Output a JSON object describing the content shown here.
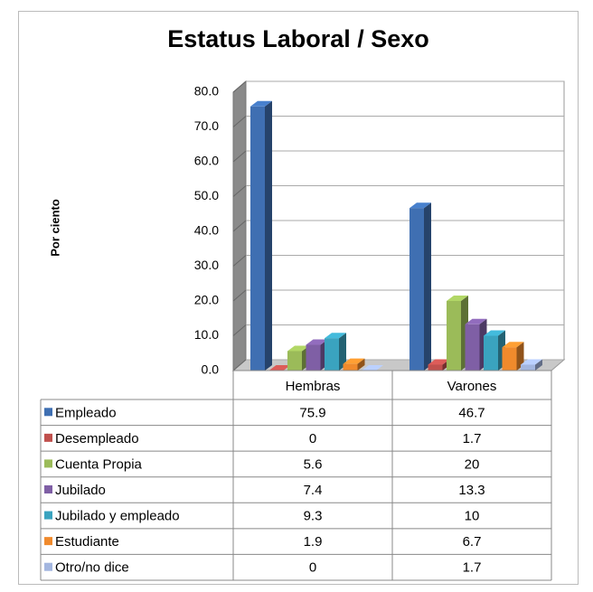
{
  "chart_data": {
    "type": "bar3d",
    "title": "Estatus Laboral / Sexo",
    "y_label": "Por ciento",
    "categories": [
      "Hembras",
      "Varones"
    ],
    "series": [
      {
        "name": "Empleado",
        "color": "#3f6fb2",
        "values": [
          75.9,
          46.7
        ]
      },
      {
        "name": "Desempleado",
        "color": "#c0504d",
        "values": [
          0,
          1.7
        ]
      },
      {
        "name": "Cuenta Propia",
        "color": "#9bbb59",
        "values": [
          5.6,
          20
        ]
      },
      {
        "name": "Jubilado",
        "color": "#7f5fa5",
        "values": [
          7.4,
          13.3
        ]
      },
      {
        "name": "Jubilado y empleado",
        "color": "#3aa3bf",
        "values": [
          9.3,
          10
        ]
      },
      {
        "name": "Estudiante",
        "color": "#f08a2c",
        "values": [
          1.9,
          6.7
        ]
      },
      {
        "name": "Otro/no dice",
        "color": "#a3b6df",
        "values": [
          0,
          1.7
        ]
      }
    ],
    "ylim": [
      0,
      80
    ],
    "yticks": [
      {
        "value": 0,
        "label": "0.0"
      },
      {
        "value": 10,
        "label": "10.0"
      },
      {
        "value": 20,
        "label": "20.0"
      },
      {
        "value": 30,
        "label": "30.0"
      },
      {
        "value": 40,
        "label": "40.0"
      },
      {
        "value": 50,
        "label": "50.0"
      },
      {
        "value": 60,
        "label": "60.0"
      },
      {
        "value": 70,
        "label": "70.0"
      },
      {
        "value": 80,
        "label": "80.0"
      }
    ],
    "grid": true,
    "data_table": true
  }
}
